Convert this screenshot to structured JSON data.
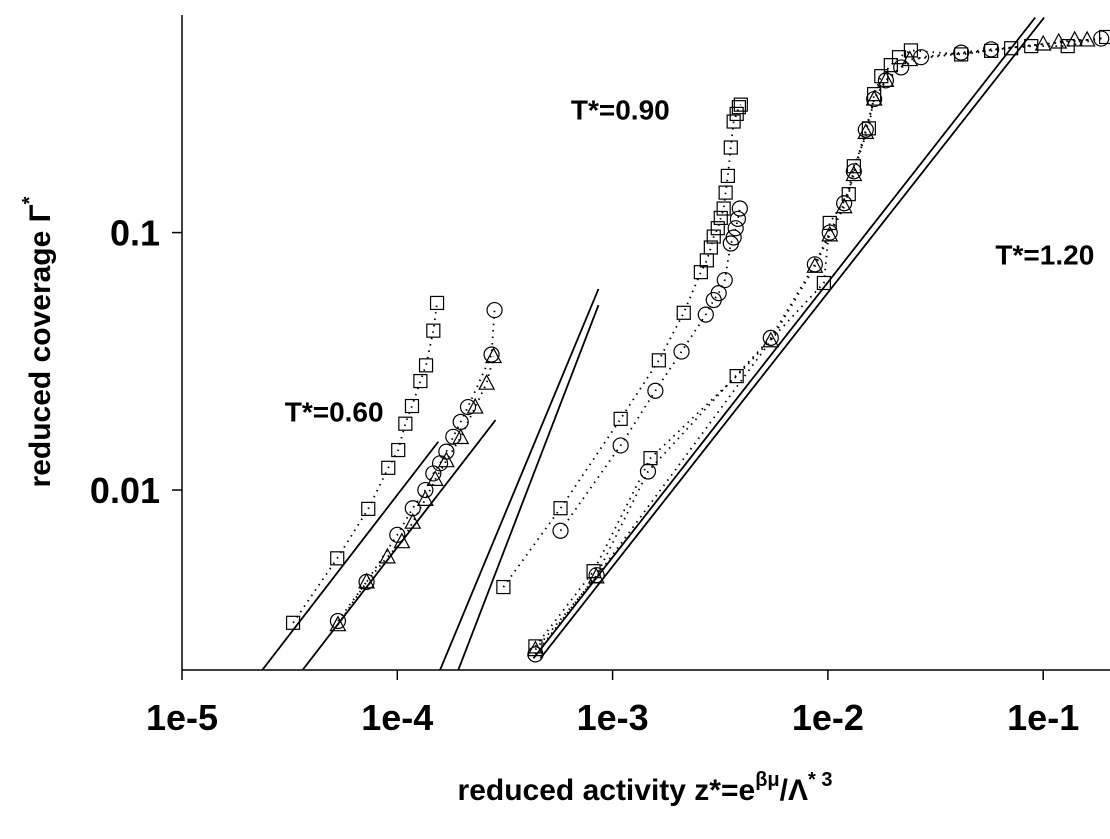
{
  "chart_data": {
    "type": "scatter",
    "x_label": {
      "main": "reduced activity z*=e",
      "sup1": "βμ",
      "mid": "/Λ",
      "sup2": "* 3"
    },
    "y_label": {
      "main": "reduced coverage Γ",
      "sup": "*"
    },
    "log_x": true,
    "log_y": true,
    "xlim": [
      1e-05,
      0.2
    ],
    "ylim": [
      0.002,
      0.7
    ],
    "xticks": [
      {
        "value": 1e-05,
        "label": "1e-5"
      },
      {
        "value": 0.0001,
        "label": "1e-4"
      },
      {
        "value": 0.001,
        "label": "1e-3"
      },
      {
        "value": 0.01,
        "label": "1e-2"
      },
      {
        "value": 0.1,
        "label": "1e-1"
      }
    ],
    "yticks": [
      0.01,
      0.1
    ],
    "color": "#000000",
    "annotations": [
      {
        "text": "T*=0.60",
        "x": 3e-05,
        "y": 0.0185
      },
      {
        "text": "T*=0.90",
        "x": 0.00064,
        "y": 0.275
      },
      {
        "text": "T*=1.20",
        "x": 0.06,
        "y": 0.075
      }
    ],
    "series": [
      {
        "marker": "square",
        "line_style": "dotted",
        "x": [
          3.28e-05,
          5.26e-05,
          7.33e-05,
          9.08e-05,
          0.000101,
          0.000109,
          0.000117,
          0.000128,
          0.000136,
          0.000147,
          0.000153
        ],
        "values": [
          0.00305,
          0.00543,
          0.00845,
          0.0122,
          0.0143,
          0.0181,
          0.0212,
          0.0265,
          0.0305,
          0.0416,
          0.0533
        ]
      },
      {
        "marker": "circle",
        "line_style": "dotted",
        "x": [
          5.3e-05,
          7.2e-05,
          0.0001,
          0.000118,
          0.000135,
          0.000147,
          0.000158,
          0.000169,
          0.000182,
          0.000197,
          0.000213,
          0.000274,
          0.000283
        ],
        "values": [
          0.0031,
          0.0044,
          0.0067,
          0.0085,
          0.01,
          0.0116,
          0.0127,
          0.0141,
          0.0161,
          0.0184,
          0.021,
          0.0336,
          0.05
        ]
      },
      {
        "marker": "triangle",
        "line_style": "dotted",
        "x": [
          5.3e-05,
          7.2e-05,
          9e-05,
          0.000105,
          0.000118,
          0.000135,
          0.00015,
          0.000169,
          0.000197,
          0.00023,
          0.00026,
          0.00028
        ],
        "values": [
          0.003,
          0.0044,
          0.0055,
          0.0063,
          0.0075,
          0.0092,
          0.011,
          0.013,
          0.016,
          0.021,
          0.026,
          0.033
        ]
      },
      {
        "marker": "square",
        "line_style": "dotted",
        "x": [
          0.000311,
          0.000573,
          0.00109,
          0.00164,
          0.00214,
          0.00257,
          0.00274,
          0.00286,
          0.00295,
          0.00308,
          0.00318,
          0.00328,
          0.00335,
          0.00343,
          0.00354,
          0.00365,
          0.00377,
          0.00386,
          0.00394
        ],
        "values": [
          0.0042,
          0.0085,
          0.0189,
          0.0319,
          0.0488,
          0.0702,
          0.078,
          0.0875,
          0.0965,
          0.104,
          0.114,
          0.124,
          0.143,
          0.166,
          0.214,
          0.27,
          0.289,
          0.307,
          0.314
        ]
      },
      {
        "marker": "circle",
        "line_style": "dotted",
        "x": [
          0.000573,
          0.00109,
          0.00158,
          0.00209,
          0.00271,
          0.00295,
          0.00311,
          0.00332,
          0.00354,
          0.00365,
          0.00373,
          0.00382,
          0.0039
        ],
        "values": [
          0.00695,
          0.0149,
          0.0243,
          0.0345,
          0.048,
          0.0547,
          0.0582,
          0.0654,
          0.0907,
          0.0957,
          0.104,
          0.113,
          0.124
        ]
      },
      {
        "marker": "square",
        "line_style": "dotted",
        "x": [
          0.000438,
          0.000816,
          0.0015,
          0.00377,
          0.00958,
          0.0102,
          0.0125,
          0.0132,
          0.0155,
          0.0164,
          0.0177,
          0.0196,
          0.0214,
          0.0243,
          0.0416,
          0.0573,
          0.071,
          0.088,
          0.13,
          0.196
        ],
        "values": [
          0.00247,
          0.00484,
          0.0133,
          0.0277,
          0.0637,
          0.109,
          0.141,
          0.181,
          0.254,
          0.345,
          0.405,
          0.447,
          0.48,
          0.51,
          0.492,
          0.508,
          0.52,
          0.53,
          0.53,
          0.575
        ]
      },
      {
        "marker": "circle",
        "line_style": "dotted",
        "x": [
          0.000438,
          0.000843,
          0.00146,
          0.00543,
          0.0087,
          0.0102,
          0.0119,
          0.0132,
          0.015,
          0.0164,
          0.0186,
          0.0219,
          0.0271,
          0.0416,
          0.0573,
          0.186
        ],
        "values": [
          0.0023,
          0.00467,
          0.0118,
          0.039,
          0.0753,
          0.1,
          0.13,
          0.173,
          0.251,
          0.33,
          0.39,
          0.438,
          0.48,
          0.5,
          0.515,
          0.567
        ]
      },
      {
        "marker": "triangle",
        "line_style": "dotted",
        "x": [
          0.000438,
          0.00084,
          0.00543,
          0.0087,
          0.0102,
          0.0119,
          0.0132,
          0.015,
          0.0164,
          0.0186,
          0.024,
          0.1,
          0.118,
          0.14,
          0.16
        ],
        "values": [
          0.0024,
          0.0046,
          0.038,
          0.074,
          0.098,
          0.126,
          0.168,
          0.245,
          0.33,
          0.39,
          0.47,
          0.54,
          0.55,
          0.56,
          0.56
        ]
      }
    ],
    "lines": [
      {
        "x": [
          2.36e-05,
          0.000155
        ],
        "values": [
          0.002,
          0.0154
        ]
      },
      {
        "x": [
          3.63e-05,
          0.000286
        ],
        "values": [
          0.002,
          0.0187
        ]
      },
      {
        "x": [
          0.000158,
          0.00086
        ],
        "values": [
          0.002,
          0.0604
        ]
      },
      {
        "x": [
          0.000192,
          0.00086
        ],
        "values": [
          0.002,
          0.0523
        ]
      },
      {
        "x": [
          0.000429,
          0.0918
        ],
        "values": [
          0.00222,
          0.684
        ]
      },
      {
        "x": [
          0.000462,
          0.101
        ],
        "values": [
          0.00222,
          0.684
        ]
      }
    ]
  }
}
